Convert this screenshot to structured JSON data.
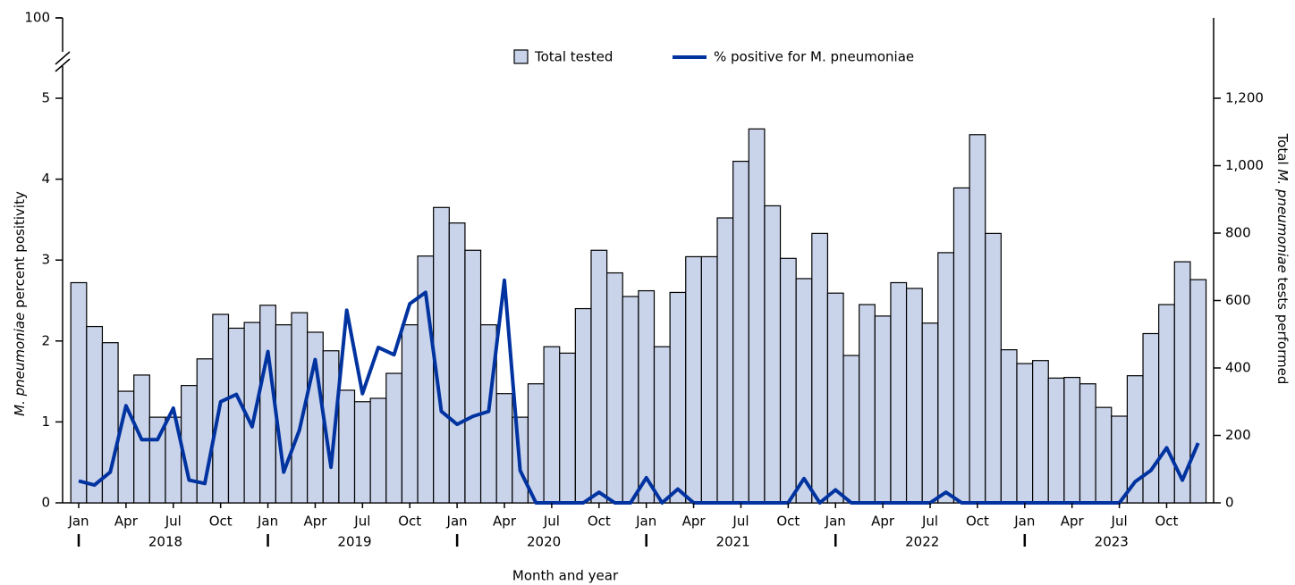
{
  "chart_data": {
    "type": "bar_line",
    "xlabel": "Month and year",
    "ylabel": [
      "M. pneumoniae",
      " percent positivity"
    ],
    "y2label": [
      "Total ",
      "M. pneumoniae",
      " tests performed"
    ],
    "categories": [
      "Jan",
      null,
      null,
      "Apr",
      null,
      null,
      "Jul",
      null,
      null,
      "Oct",
      null,
      null,
      "Jan",
      null,
      null,
      "Apr",
      null,
      null,
      "Jul",
      null,
      null,
      "Oct",
      null,
      null,
      "Jan",
      null,
      null,
      "Apr",
      null,
      null,
      "Jul",
      null,
      null,
      "Oct",
      null,
      null,
      "Jan",
      null,
      null,
      "Apr",
      null,
      null,
      "Jul",
      null,
      null,
      "Oct",
      null,
      null,
      "Jan",
      null,
      null,
      "Apr",
      null,
      null,
      "Jul",
      null,
      null,
      "Oct",
      null,
      null,
      "Jan",
      null,
      null,
      "Apr",
      null,
      null,
      "Jul",
      null,
      null,
      "Oct",
      null,
      null
    ],
    "years": [
      "2018",
      "2019",
      "2020",
      "2021",
      "2022",
      "2023"
    ],
    "series": [
      {
        "name": "Total tested",
        "type": "bar",
        "axis": "y2",
        "color": "#c9d3ea",
        "values": [
          653,
          523,
          475,
          331,
          379,
          254,
          254,
          348,
          427,
          559,
          518,
          535,
          586,
          528,
          564,
          506,
          451,
          334,
          300,
          310,
          384,
          528,
          732,
          876,
          830,
          749,
          528,
          324,
          254,
          353,
          463,
          444,
          576,
          749,
          682,
          612,
          629,
          463,
          624,
          730,
          730,
          845,
          1013,
          1109,
          881,
          725,
          665,
          799,
          622,
          437,
          588,
          554,
          653,
          636,
          533,
          742,
          934,
          1092,
          799,
          454,
          413,
          422,
          370,
          372,
          353,
          283,
          257,
          377,
          502,
          588,
          715,
          662
        ]
      },
      {
        "name": "% positive for M. pneumoniae",
        "type": "line",
        "color": "#0033a0",
        "values": [
          0.27,
          0.22,
          0.38,
          1.2,
          0.78,
          0.78,
          1.17,
          0.28,
          0.24,
          1.25,
          1.34,
          0.94,
          1.87,
          0.38,
          0.9,
          1.77,
          0.44,
          2.38,
          1.35,
          1.92,
          1.83,
          2.46,
          2.6,
          1.13,
          0.97,
          1.07,
          1.13,
          2.75,
          0.4,
          0,
          0,
          0,
          0,
          0.13,
          0,
          0,
          0.31,
          0,
          0.17,
          0,
          0,
          0,
          0,
          0,
          0,
          0,
          0.3,
          0,
          0.16,
          0,
          0,
          0,
          0,
          0,
          0,
          0.13,
          0,
          0,
          0,
          0,
          0,
          0,
          0,
          0,
          0,
          0,
          0,
          0.26,
          0.4,
          0.68,
          0.28,
          0.74
        ]
      }
    ],
    "ylim": [
      0,
      100
    ],
    "ybreak": 5,
    "yticks": [
      0,
      1,
      2,
      3,
      4,
      5,
      100
    ],
    "y2lim": [
      0,
      1200
    ],
    "y2ticks": [
      0,
      200,
      400,
      600,
      800,
      {
        "value": 1000,
        "label": "1,000"
      },
      {
        "value": 1200,
        "label": "1,200"
      }
    ],
    "legend": "top"
  }
}
